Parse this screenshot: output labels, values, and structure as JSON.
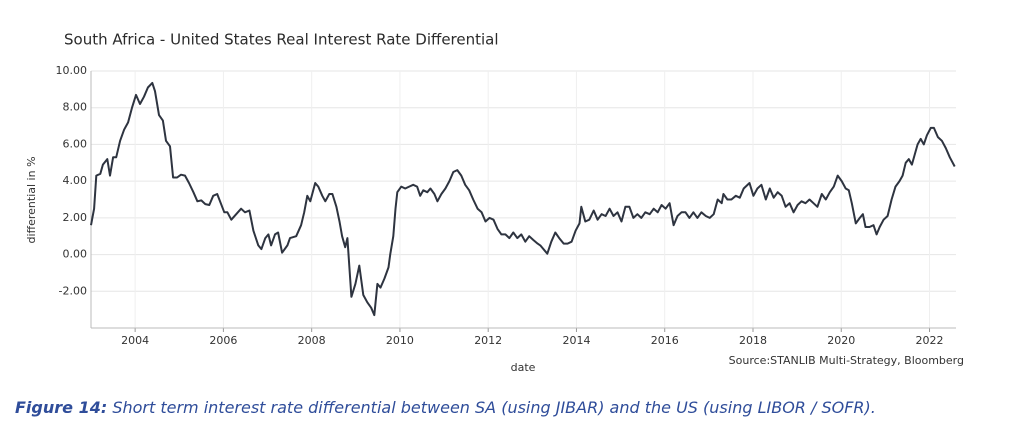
{
  "chart_data": {
    "type": "line",
    "title": "South Africa - United States Real Interest Rate Differential",
    "x_label": "date",
    "y_label": "differential in %",
    "source": "Source:STANLIB Multi-Strategy, Bloomberg",
    "caption_label": "Figure 14:",
    "caption_text": "Short term interest rate differential between SA (using JIBAR) and the US (using LIBOR / SOFR).",
    "color": "#2e3440",
    "grid": true,
    "xlim": [
      2003.0,
      2022.6
    ],
    "xticks": [
      2004,
      2006,
      2008,
      2010,
      2012,
      2014,
      2016,
      2018,
      2020,
      2022
    ],
    "ylim": [
      -4,
      10
    ],
    "yticks": [
      {
        "value": -2,
        "label": "-2.00"
      },
      {
        "value": 0,
        "label": "0.00"
      },
      {
        "value": 2,
        "label": "2.00"
      },
      {
        "value": 4,
        "label": "4.00"
      },
      {
        "value": 6,
        "label": "6.00"
      },
      {
        "value": 8,
        "label": "8.00"
      },
      {
        "value": 10,
        "label": "10.00"
      }
    ],
    "x": [
      2003.0,
      2003.07,
      2003.12,
      2003.21,
      2003.27,
      2003.37,
      2003.43,
      2003.5,
      2003.57,
      2003.66,
      2003.75,
      2003.84,
      2003.93,
      2004.02,
      2004.11,
      2004.2,
      2004.29,
      2004.39,
      2004.45,
      2004.54,
      2004.63,
      2004.7,
      2004.79,
      2004.86,
      2004.95,
      2005.04,
      2005.13,
      2005.22,
      2005.32,
      2005.41,
      2005.5,
      2005.59,
      2005.68,
      2005.77,
      2005.86,
      2006.02,
      2006.09,
      2006.18,
      2006.29,
      2006.4,
      2006.49,
      2006.59,
      2006.68,
      2006.79,
      2006.86,
      2006.95,
      2007.02,
      2007.08,
      2007.17,
      2007.24,
      2007.33,
      2007.45,
      2007.51,
      2007.65,
      2007.76,
      2007.83,
      2007.9,
      2007.97,
      2008.08,
      2008.15,
      2008.24,
      2008.31,
      2008.4,
      2008.47,
      2008.56,
      2008.63,
      2008.69,
      2008.76,
      2008.81,
      2008.9,
      2008.99,
      2009.08,
      2009.17,
      2009.26,
      2009.35,
      2009.42,
      2009.49,
      2009.56,
      2009.65,
      2009.74,
      2009.78,
      2009.85,
      2009.9,
      2009.94,
      2010.03,
      2010.12,
      2010.21,
      2010.3,
      2010.39,
      2010.46,
      2010.53,
      2010.62,
      2010.69,
      2010.78,
      2010.85,
      2010.94,
      2011.03,
      2011.12,
      2011.21,
      2011.3,
      2011.39,
      2011.48,
      2011.57,
      2011.66,
      2011.76,
      2011.85,
      2011.94,
      2012.03,
      2012.12,
      2012.21,
      2012.3,
      2012.39,
      2012.48,
      2012.57,
      2012.66,
      2012.75,
      2012.84,
      2012.93,
      2013.02,
      2013.12,
      2013.18,
      2013.34,
      2013.43,
      2013.52,
      2013.61,
      2013.71,
      2013.8,
      2013.89,
      2013.98,
      2014.07,
      2014.11,
      2014.2,
      2014.29,
      2014.39,
      2014.48,
      2014.57,
      2014.66,
      2014.75,
      2014.84,
      2014.93,
      2015.02,
      2015.11,
      2015.2,
      2015.29,
      2015.38,
      2015.47,
      2015.56,
      2015.66,
      2015.75,
      2015.84,
      2015.93,
      2016.02,
      2016.11,
      2016.2,
      2016.29,
      2016.38,
      2016.47,
      2016.56,
      2016.65,
      2016.74,
      2016.83,
      2016.93,
      2017.02,
      2017.11,
      2017.2,
      2017.29,
      2017.33,
      2017.42,
      2017.51,
      2017.61,
      2017.7,
      2017.79,
      2017.92,
      2018.01,
      2018.1,
      2018.19,
      2018.29,
      2018.38,
      2018.47,
      2018.56,
      2018.65,
      2018.74,
      2018.83,
      2018.92,
      2019.01,
      2019.1,
      2019.19,
      2019.28,
      2019.37,
      2019.46,
      2019.56,
      2019.65,
      2019.74,
      2019.83,
      2019.92,
      2020.01,
      2020.1,
      2020.17,
      2020.24,
      2020.33,
      2020.42,
      2020.49,
      2020.55,
      2020.64,
      2020.73,
      2020.8,
      2020.87,
      2020.96,
      2021.05,
      2021.14,
      2021.23,
      2021.32,
      2021.39,
      2021.46,
      2021.53,
      2021.6,
      2021.66,
      2021.73,
      2021.8,
      2021.87,
      2021.94,
      2022.03,
      2022.1,
      2022.19,
      2022.28,
      2022.37,
      2022.46,
      2022.57
    ],
    "values": [
      1.6,
      2.5,
      4.3,
      4.4,
      4.9,
      5.2,
      4.3,
      5.3,
      5.3,
      6.2,
      6.8,
      7.2,
      8.0,
      8.7,
      8.2,
      8.6,
      9.1,
      9.35,
      8.9,
      7.6,
      7.3,
      6.2,
      5.9,
      4.2,
      4.2,
      4.35,
      4.3,
      3.9,
      3.4,
      2.9,
      2.95,
      2.75,
      2.7,
      3.2,
      3.3,
      2.3,
      2.3,
      1.9,
      2.2,
      2.5,
      2.3,
      2.4,
      1.3,
      0.5,
      0.3,
      0.9,
      1.1,
      0.5,
      1.1,
      1.2,
      0.1,
      0.5,
      0.9,
      1.0,
      1.6,
      2.3,
      3.2,
      2.9,
      3.9,
      3.7,
      3.2,
      2.9,
      3.3,
      3.3,
      2.6,
      1.8,
      1.0,
      0.4,
      0.9,
      -2.3,
      -1.6,
      -0.6,
      -2.2,
      -2.6,
      -2.9,
      -3.3,
      -1.6,
      -1.8,
      -1.3,
      -0.7,
      0.0,
      1.0,
      2.5,
      3.4,
      3.7,
      3.6,
      3.7,
      3.8,
      3.7,
      3.2,
      3.5,
      3.4,
      3.6,
      3.3,
      2.9,
      3.3,
      3.6,
      4.0,
      4.5,
      4.6,
      4.3,
      3.8,
      3.5,
      3.0,
      2.5,
      2.3,
      1.8,
      2.0,
      1.9,
      1.4,
      1.1,
      1.1,
      0.9,
      1.2,
      0.9,
      1.1,
      0.7,
      1.0,
      0.8,
      0.6,
      0.5,
      0.05,
      0.7,
      1.2,
      0.9,
      0.6,
      0.6,
      0.7,
      1.3,
      1.7,
      2.6,
      1.8,
      1.9,
      2.4,
      1.9,
      2.2,
      2.1,
      2.5,
      2.1,
      2.3,
      1.8,
      2.6,
      2.6,
      2.0,
      2.2,
      2.0,
      2.3,
      2.2,
      2.5,
      2.3,
      2.7,
      2.5,
      2.8,
      1.6,
      2.1,
      2.3,
      2.3,
      2.0,
      2.3,
      2.0,
      2.3,
      2.1,
      2.0,
      2.2,
      3.0,
      2.8,
      3.3,
      3.0,
      3.0,
      3.2,
      3.1,
      3.6,
      3.9,
      3.2,
      3.6,
      3.8,
      3.0,
      3.6,
      3.1,
      3.4,
      3.2,
      2.6,
      2.8,
      2.3,
      2.7,
      2.9,
      2.8,
      3.0,
      2.8,
      2.6,
      3.3,
      3.0,
      3.4,
      3.7,
      4.3,
      4.0,
      3.6,
      3.5,
      2.8,
      1.7,
      2.0,
      2.2,
      1.5,
      1.5,
      1.6,
      1.1,
      1.5,
      1.9,
      2.1,
      3.0,
      3.7,
      4.0,
      4.3,
      5.0,
      5.2,
      4.9,
      5.4,
      6.0,
      6.3,
      6.0,
      6.5,
      6.9,
      6.9,
      6.4,
      6.2,
      5.8,
      5.3,
      4.8
    ]
  }
}
